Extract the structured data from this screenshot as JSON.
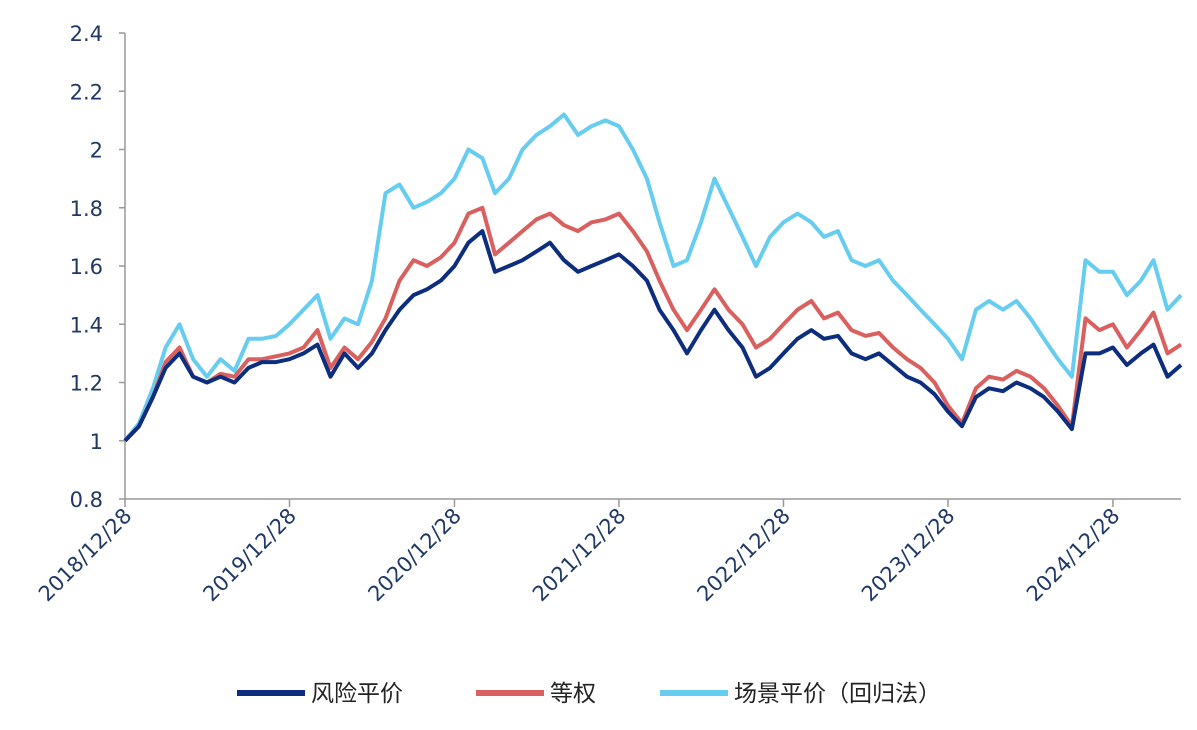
{
  "chart_data": {
    "type": "line",
    "x": [
      "2018/12/28",
      "2019/01/28",
      "2019/02/28",
      "2019/03/28",
      "2019/04/28",
      "2019/05/28",
      "2019/06/28",
      "2019/07/28",
      "2019/08/28",
      "2019/09/28",
      "2019/10/28",
      "2019/11/28",
      "2019/12/28",
      "2020/01/28",
      "2020/02/28",
      "2020/03/28",
      "2020/04/28",
      "2020/05/28",
      "2020/06/28",
      "2020/07/28",
      "2020/08/28",
      "2020/09/28",
      "2020/10/28",
      "2020/11/28",
      "2020/12/28",
      "2021/01/28",
      "2021/02/28",
      "2021/03/28",
      "2021/04/28",
      "2021/05/28",
      "2021/06/28",
      "2021/07/28",
      "2021/08/28",
      "2021/09/28",
      "2021/10/28",
      "2021/11/28",
      "2021/12/28",
      "2022/01/28",
      "2022/02/28",
      "2022/03/28",
      "2022/04/28",
      "2022/05/28",
      "2022/06/28",
      "2022/07/28",
      "2022/08/28",
      "2022/09/28",
      "2022/10/28",
      "2022/11/28",
      "2022/12/28",
      "2023/01/28",
      "2023/02/28",
      "2023/03/28",
      "2023/04/28",
      "2023/05/28",
      "2023/06/28",
      "2023/07/28",
      "2023/08/28",
      "2023/09/28",
      "2023/10/28",
      "2023/11/28",
      "2023/12/28",
      "2024/01/28",
      "2024/02/28",
      "2024/03/28",
      "2024/04/28",
      "2024/05/28",
      "2024/06/28",
      "2024/07/28",
      "2024/08/28",
      "2024/09/28",
      "2024/10/28",
      "2024/11/28",
      "2024/12/28",
      "2025/01/28",
      "2025/02/28",
      "2025/03/28",
      "2025/04/28",
      "2025/05/28"
    ],
    "series": [
      {
        "name": "风险平价",
        "color": "#0d2e7e",
        "values": [
          1.0,
          1.05,
          1.15,
          1.25,
          1.3,
          1.22,
          1.2,
          1.22,
          1.2,
          1.25,
          1.27,
          1.27,
          1.28,
          1.3,
          1.33,
          1.22,
          1.3,
          1.25,
          1.3,
          1.38,
          1.45,
          1.5,
          1.52,
          1.55,
          1.6,
          1.68,
          1.72,
          1.58,
          1.6,
          1.62,
          1.65,
          1.68,
          1.62,
          1.58,
          1.6,
          1.62,
          1.64,
          1.6,
          1.55,
          1.45,
          1.38,
          1.3,
          1.38,
          1.45,
          1.38,
          1.32,
          1.22,
          1.25,
          1.3,
          1.35,
          1.38,
          1.35,
          1.36,
          1.3,
          1.28,
          1.3,
          1.26,
          1.22,
          1.2,
          1.16,
          1.1,
          1.05,
          1.15,
          1.18,
          1.17,
          1.2,
          1.18,
          1.15,
          1.1,
          1.04,
          1.3,
          1.3,
          1.32,
          1.26,
          1.3,
          1.33,
          1.22,
          1.26
        ]
      },
      {
        "name": "等权",
        "color": "#d9605e",
        "values": [
          1.0,
          1.05,
          1.15,
          1.27,
          1.32,
          1.22,
          1.2,
          1.23,
          1.22,
          1.28,
          1.28,
          1.29,
          1.3,
          1.32,
          1.38,
          1.25,
          1.32,
          1.28,
          1.34,
          1.42,
          1.55,
          1.62,
          1.6,
          1.63,
          1.68,
          1.78,
          1.8,
          1.64,
          1.68,
          1.72,
          1.76,
          1.78,
          1.74,
          1.72,
          1.75,
          1.76,
          1.78,
          1.72,
          1.65,
          1.55,
          1.45,
          1.38,
          1.45,
          1.52,
          1.45,
          1.4,
          1.32,
          1.35,
          1.4,
          1.45,
          1.48,
          1.42,
          1.44,
          1.38,
          1.36,
          1.37,
          1.32,
          1.28,
          1.25,
          1.2,
          1.12,
          1.06,
          1.18,
          1.22,
          1.21,
          1.24,
          1.22,
          1.18,
          1.12,
          1.05,
          1.42,
          1.38,
          1.4,
          1.32,
          1.38,
          1.44,
          1.3,
          1.33
        ]
      },
      {
        "name": "场景平价（回归法）",
        "color": "#66ccf0",
        "values": [
          1.0,
          1.06,
          1.18,
          1.32,
          1.4,
          1.28,
          1.22,
          1.28,
          1.24,
          1.35,
          1.35,
          1.36,
          1.4,
          1.45,
          1.5,
          1.35,
          1.42,
          1.4,
          1.55,
          1.85,
          1.88,
          1.8,
          1.82,
          1.85,
          1.9,
          2.0,
          1.97,
          1.85,
          1.9,
          2.0,
          2.05,
          2.08,
          2.12,
          2.05,
          2.08,
          2.1,
          2.08,
          2.0,
          1.9,
          1.75,
          1.6,
          1.62,
          1.75,
          1.9,
          1.8,
          1.7,
          1.6,
          1.7,
          1.75,
          1.78,
          1.75,
          1.7,
          1.72,
          1.62,
          1.6,
          1.62,
          1.55,
          1.5,
          1.45,
          1.4,
          1.35,
          1.28,
          1.45,
          1.48,
          1.45,
          1.48,
          1.42,
          1.35,
          1.28,
          1.22,
          1.62,
          1.58,
          1.58,
          1.5,
          1.55,
          1.62,
          1.45,
          1.5
        ]
      }
    ],
    "xlim": [
      "2018/12/28",
      "2025/05/28"
    ],
    "xticks": [
      "2018/12/28",
      "2019/12/28",
      "2020/12/28",
      "2021/12/28",
      "2022/12/28",
      "2023/12/28",
      "2024/12/28"
    ],
    "ylim": [
      0.8,
      2.4
    ],
    "yticks": [
      0.8,
      1,
      1.2,
      1.4,
      1.6,
      1.8,
      2,
      2.2,
      2.4
    ],
    "legend": "bottom"
  }
}
